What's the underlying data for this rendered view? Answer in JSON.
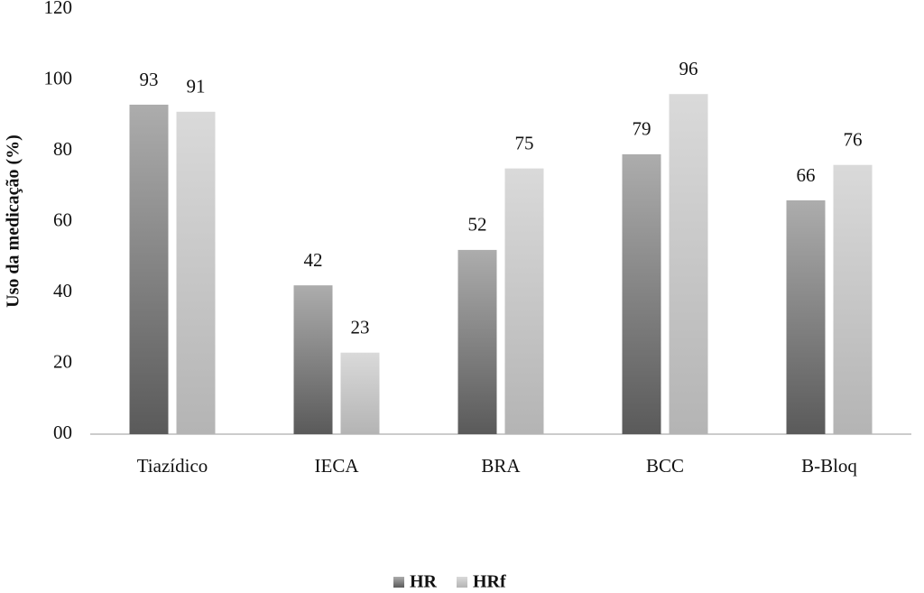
{
  "chart_data": {
    "type": "bar",
    "y_label": "Uso da medicação (%)",
    "categories": [
      "Tiazídico",
      "IECA",
      "BRA",
      "BCC",
      "B-Bloq"
    ],
    "series": [
      {
        "name": "HR",
        "color": "#5a5a5a",
        "values": [
          93,
          42,
          52,
          79,
          66
        ]
      },
      {
        "name": "HRf",
        "color": "#b4b4b4",
        "values": [
          91,
          23,
          75,
          96,
          76
        ]
      }
    ],
    "ylim": [
      0,
      120
    ],
    "yticks": [
      {
        "value": 0,
        "label": "00"
      },
      20,
      40,
      60,
      80,
      100,
      120
    ],
    "grid": false,
    "legend": "bottom"
  }
}
